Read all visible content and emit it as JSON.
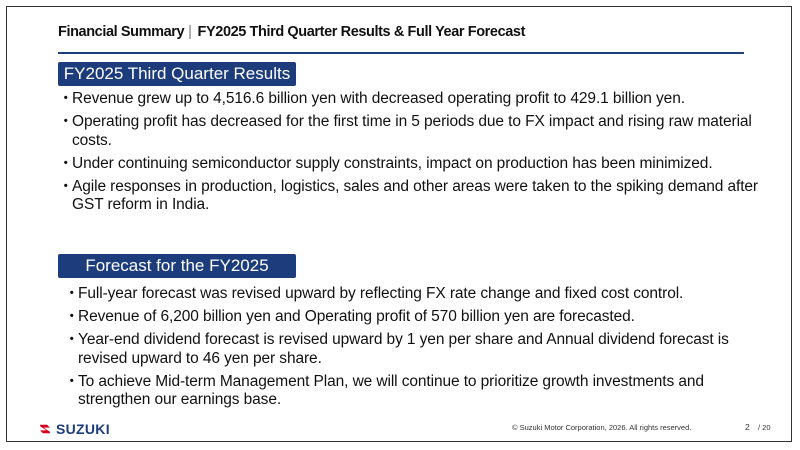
{
  "header": {
    "section": "Financial Summary",
    "separator": "|",
    "title": "FY2025 Third Quarter Results & Full Year Forecast"
  },
  "results": {
    "title": "FY2025 Third Quarter Results",
    "bullets": [
      "Revenue grew up to 4,516.6 billion yen with decreased operating profit to 429.1 billion yen.",
      "Operating profit has decreased for the first time in 5 periods due to FX impact and rising raw material costs.",
      "Under continuing semiconductor supply constraints, impact on production has been minimized.",
      "Agile responses in production, logistics, sales and other areas were taken to the spiking demand after GST reform in India."
    ]
  },
  "forecast": {
    "title": "Forecast for the FY2025",
    "bullets": [
      "Full-year forecast was revised upward by reflecting FX rate change and fixed cost control.",
      "Revenue of 6,200 billion yen and Operating profit of 570 billion yen are forecasted.",
      "Year-end dividend forecast is revised upward by 1 yen per share and Annual dividend forecast is revised upward to 46 yen per share.",
      "To achieve Mid-term Management Plan, we will continue to prioritize growth investments and strengthen our earnings base."
    ]
  },
  "bullet_char": "・",
  "footer": {
    "logo_text": "SUZUKI",
    "logo_color": "#1c3c7c",
    "logo_mark_color": "#d6001c",
    "copyright": "© Suzuki Motor Corporation, 2026. All rights reserved.",
    "page_number": "2",
    "page_total": "/ 20"
  },
  "colors": {
    "accent": "#1c3c7c"
  }
}
